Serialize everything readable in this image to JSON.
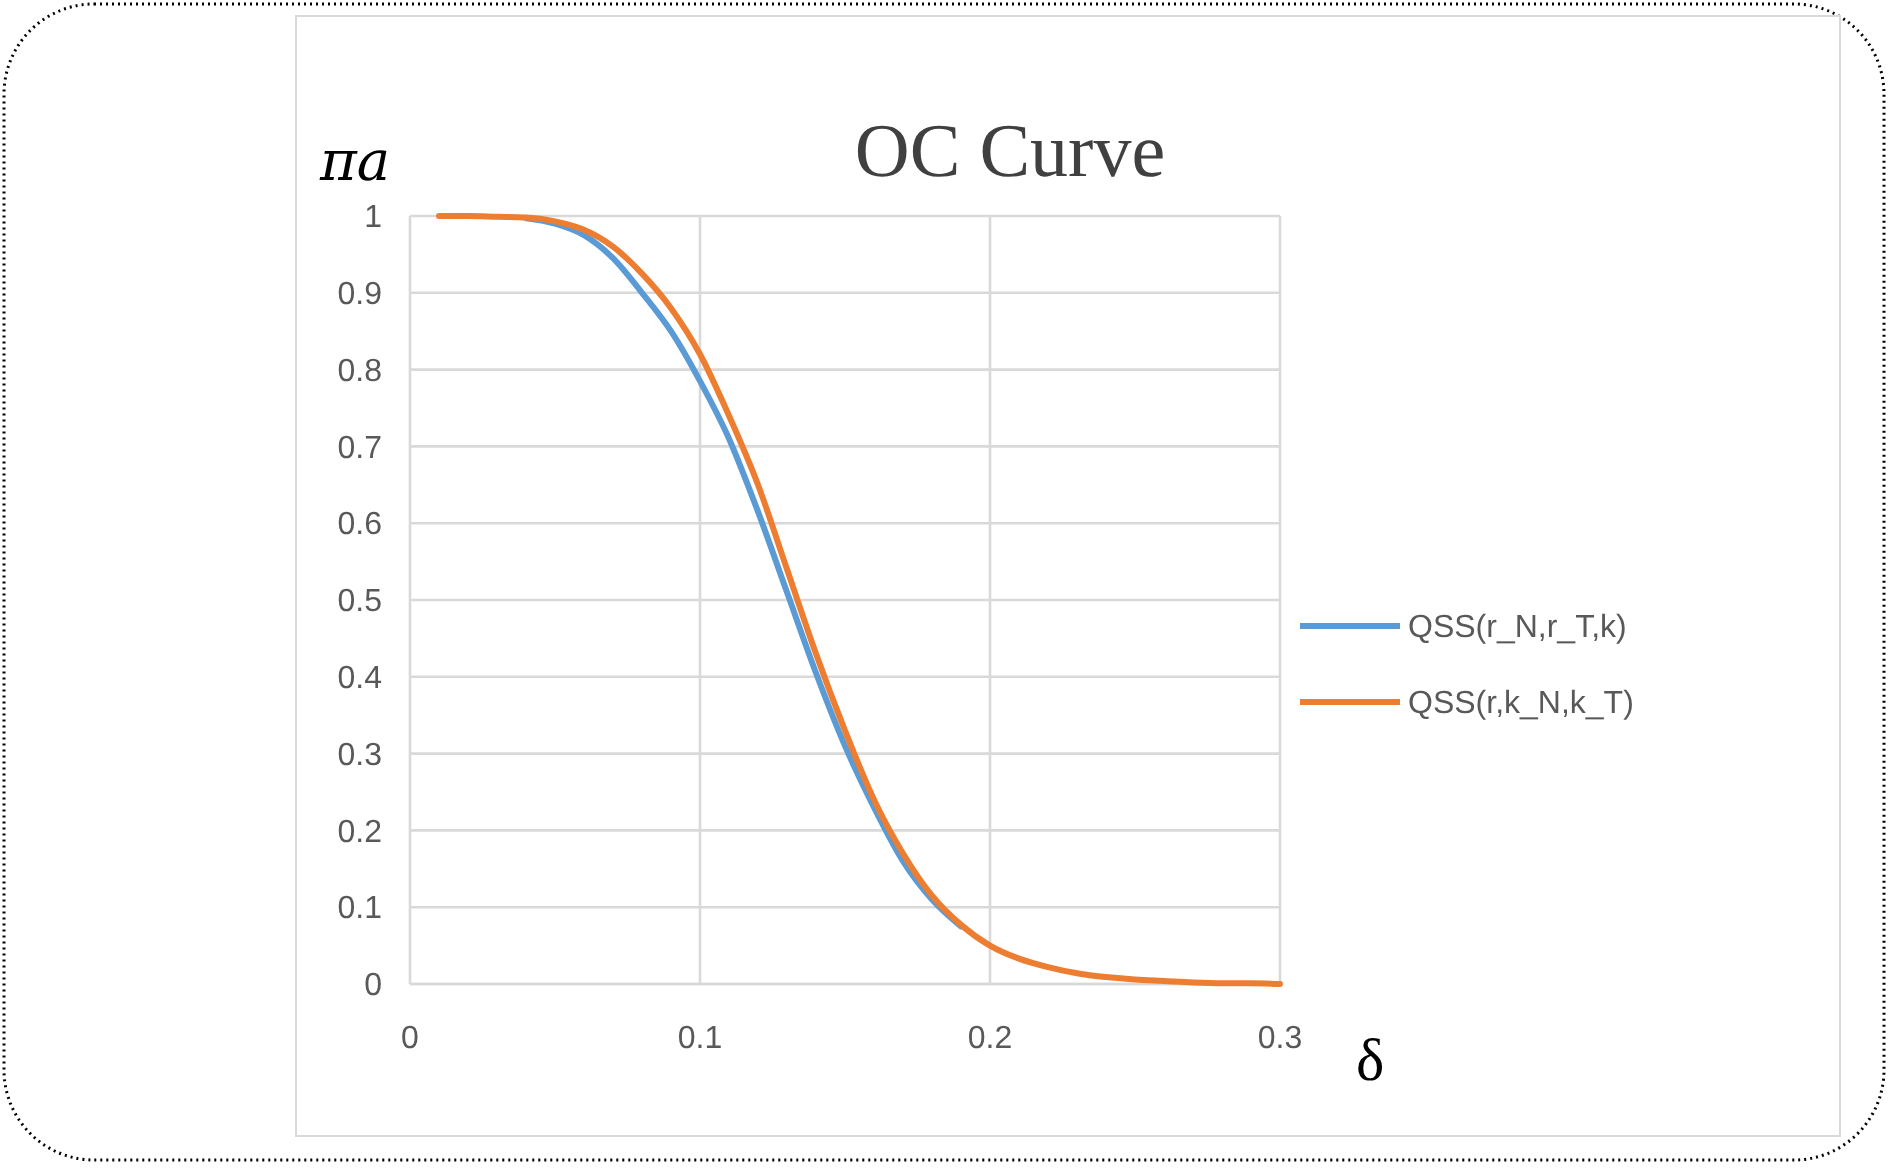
{
  "chart_data": {
    "type": "line",
    "title": "OC Curve",
    "xlabel": "δ",
    "ylabel": "πa",
    "x": [
      0.01,
      0.02,
      0.03,
      0.04,
      0.05,
      0.06,
      0.07,
      0.08,
      0.09,
      0.1,
      0.11,
      0.12,
      0.13,
      0.14,
      0.15,
      0.16,
      0.17,
      0.18,
      0.19,
      0.2,
      0.21,
      0.22,
      0.23,
      0.24,
      0.25,
      0.26,
      0.27,
      0.28,
      0.29,
      0.3
    ],
    "series": [
      {
        "name": "QSS(r_N,r_T,k)",
        "color": "#5b9bd5",
        "values": [
          null,
          null,
          null,
          0.997,
          0.99,
          0.975,
          0.945,
          0.9,
          0.85,
          0.785,
          0.71,
          0.615,
          0.51,
          0.405,
          0.31,
          0.23,
          0.16,
          0.11,
          0.075,
          null,
          null,
          null,
          null,
          null,
          null,
          null,
          null,
          null,
          null,
          null
        ]
      },
      {
        "name": "QSS(r,k_N,k_T)",
        "color": "#ed7d31",
        "values": [
          1,
          1,
          0.999,
          0.998,
          0.993,
          0.982,
          0.96,
          0.925,
          0.88,
          0.82,
          0.74,
          0.65,
          0.54,
          0.43,
          0.33,
          0.24,
          0.17,
          0.115,
          0.077,
          0.05,
          0.033,
          0.022,
          0.014,
          0.009,
          0.006,
          0.004,
          0.002,
          0.001,
          0.001,
          0
        ]
      }
    ],
    "xlim": [
      0,
      0.3
    ],
    "xticks": [
      0,
      0.1,
      0.2,
      0.3
    ],
    "ylim": [
      0,
      1
    ],
    "yticks": [
      0,
      0.1,
      0.2,
      0.3,
      0.4,
      0.5,
      0.6,
      0.7,
      0.8,
      0.9,
      1
    ],
    "grid": true,
    "legend": "right",
    "marker": "none",
    "line_style": "solid"
  }
}
